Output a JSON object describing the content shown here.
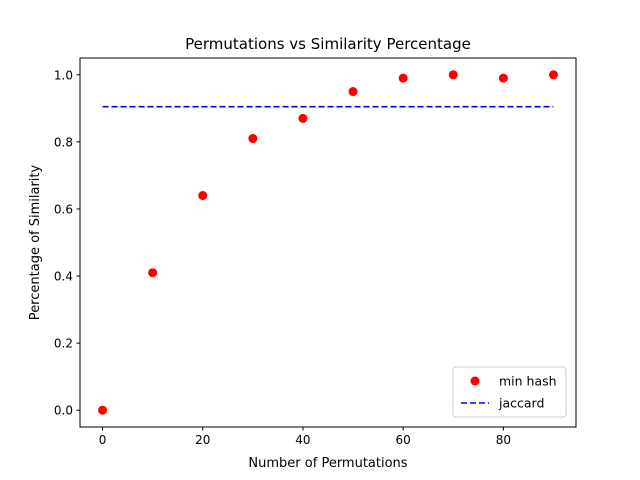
{
  "chart_data": {
    "type": "scatter",
    "title": "Permutations vs Similarity Percentage",
    "xlabel": "Number of Permutations",
    "ylabel": "Percentage of Similarity",
    "xlim": [
      -4.5,
      94.5
    ],
    "ylim": [
      -0.05,
      1.05
    ],
    "xticks": [
      "0",
      "20",
      "40",
      "60",
      "80"
    ],
    "yticks": [
      "0.0",
      "0.2",
      "0.4",
      "0.6",
      "0.8",
      "1.0"
    ],
    "grid": false,
    "legend_position": "lower-right",
    "series": [
      {
        "name": "min hash",
        "style": "markers",
        "color": "#ff0000",
        "x": [
          0,
          10,
          20,
          30,
          40,
          50,
          60,
          70,
          80,
          90
        ],
        "y": [
          0.0,
          0.41,
          0.64,
          0.81,
          0.87,
          0.95,
          0.99,
          1.0,
          0.99,
          1.0
        ]
      },
      {
        "name": "jaccard",
        "style": "dashed-line",
        "color": "#0000ff",
        "x": [
          0,
          90
        ],
        "y": [
          0.905,
          0.905
        ]
      }
    ]
  }
}
